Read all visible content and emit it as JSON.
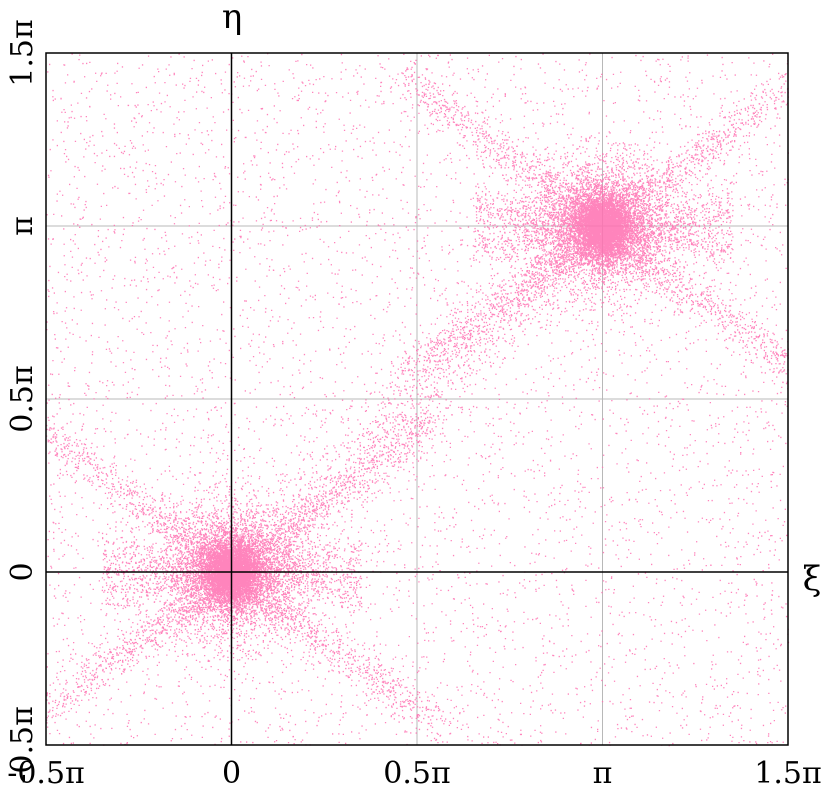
{
  "chart_data": {
    "type": "scatter",
    "title": "",
    "xlabel": "ξ",
    "ylabel": "η",
    "xlim": [
      -0.5,
      1.5
    ],
    "ylim": [
      -0.5,
      1.5
    ],
    "units": "π",
    "x_ticks": [
      {
        "value": -0.5,
        "label": "-0.5π"
      },
      {
        "value": 0,
        "label": "0"
      },
      {
        "value": 0.5,
        "label": "0.5π"
      },
      {
        "value": 1,
        "label": "π"
      },
      {
        "value": 1.5,
        "label": "1.5π"
      }
    ],
    "y_ticks": [
      {
        "value": -0.5,
        "label": "-0.5π"
      },
      {
        "value": 0,
        "label": "0"
      },
      {
        "value": 0.5,
        "label": "0.5π"
      },
      {
        "value": 1,
        "label": "π"
      },
      {
        "value": 1.5,
        "label": "1.5π"
      }
    ],
    "grid": true,
    "legend": "none",
    "marker_color": "#ff6fb0",
    "clusters": [
      {
        "center": [
          0,
          0
        ],
        "description": "dense cluster at origin with spray along diagonal directions"
      },
      {
        "center": [
          1,
          1
        ],
        "description": "dense cluster at (π, π) with spray along diagonal directions"
      }
    ]
  }
}
